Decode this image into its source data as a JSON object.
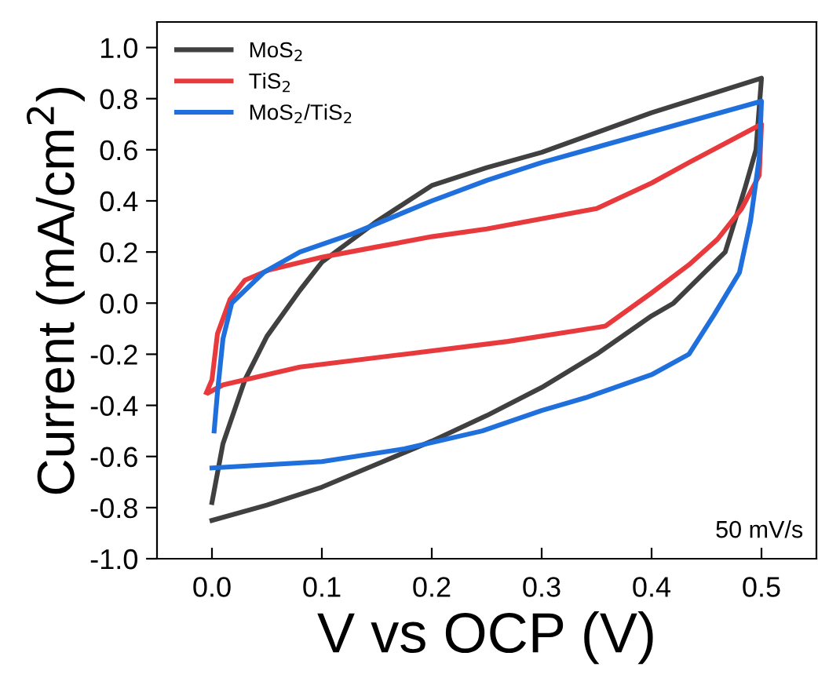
{
  "chart_data": {
    "type": "line",
    "xlabel": "V vs OCP (V)",
    "ylabel": "Current (mA/cm$^{2}$)",
    "xlim": [
      -0.05,
      0.55
    ],
    "ylim": [
      -1.0,
      1.1
    ],
    "xticks": [
      {
        "value": 0.0,
        "label": "0.0"
      },
      0.1,
      0.2,
      0.3,
      0.4,
      0.5
    ],
    "yticks": [
      {
        "value": -1.0,
        "label": "-1.0"
      },
      {
        "value": -0.8,
        "label": "-0.8"
      },
      {
        "value": -0.6,
        "label": "-0.6"
      },
      {
        "value": -0.4,
        "label": "-0.4"
      },
      {
        "value": -0.2,
        "label": "-0.2"
      },
      {
        "value": 0.0,
        "label": "0.0"
      },
      0.2,
      0.4,
      0.6,
      0.8,
      {
        "value": 1.0,
        "label": "1.0"
      }
    ],
    "grid": false,
    "legend": "top left",
    "marker": "none",
    "line_style": "solid",
    "annotations": [
      {
        "text": "50 mV/s"
      }
    ],
    "series": [
      {
        "name": "MoS$_{2}$",
        "color": "#404040",
        "x": [
          0.0,
          0.01,
          0.03,
          0.05,
          0.08,
          0.1,
          0.15,
          0.2,
          0.25,
          0.3,
          0.4,
          0.5,
          0.495,
          0.485,
          0.467,
          0.42,
          0.4,
          0.35,
          0.3,
          0.25,
          0.2,
          0.15,
          0.1,
          0.05,
          0.0
        ],
        "values": [
          -0.78,
          -0.55,
          -0.3,
          -0.13,
          0.05,
          0.16,
          0.32,
          0.46,
          0.53,
          0.59,
          0.745,
          0.88,
          0.6,
          0.45,
          0.2,
          0.0,
          -0.05,
          -0.2,
          -0.33,
          -0.44,
          -0.54,
          -0.63,
          -0.72,
          -0.79,
          -0.85
        ]
      },
      {
        "name": "TiS$_{2}$",
        "color": "#e8393d",
        "x": [
          -0.005,
          0.0,
          0.005,
          0.0165,
          0.03,
          0.052,
          0.1,
          0.15,
          0.2,
          0.25,
          0.3,
          0.35,
          0.4,
          0.434,
          0.5,
          0.498,
          0.482,
          0.46,
          0.434,
          0.4,
          0.358,
          0.269,
          0.175,
          0.08,
          0.01,
          -0.003
        ],
        "values": [
          -0.35,
          -0.3,
          -0.12,
          0.015,
          0.09,
          0.13,
          0.18,
          0.22,
          0.26,
          0.29,
          0.33,
          0.37,
          0.47,
          0.55,
          0.7,
          0.5,
          0.37,
          0.25,
          0.15,
          0.04,
          -0.09,
          -0.15,
          -0.2,
          -0.25,
          -0.32,
          -0.35
        ]
      },
      {
        "name": "MoS$_{2}$/TiS$_{2}$",
        "color": "#1f6fdc",
        "x": [
          0.002,
          0.005,
          0.01,
          0.018,
          0.047,
          0.08,
          0.127,
          0.2,
          0.25,
          0.3,
          0.4,
          0.5,
          0.5,
          0.498,
          0.49,
          0.48,
          0.457,
          0.434,
          0.4,
          0.34,
          0.3,
          0.246,
          0.175,
          0.1,
          0.0
        ],
        "values": [
          -0.5,
          -0.35,
          -0.14,
          0.0,
          0.12,
          0.2,
          0.27,
          0.4,
          0.48,
          0.55,
          0.67,
          0.79,
          0.79,
          0.57,
          0.32,
          0.12,
          -0.045,
          -0.2,
          -0.28,
          -0.37,
          -0.42,
          -0.5,
          -0.57,
          -0.62,
          -0.645
        ]
      }
    ]
  }
}
